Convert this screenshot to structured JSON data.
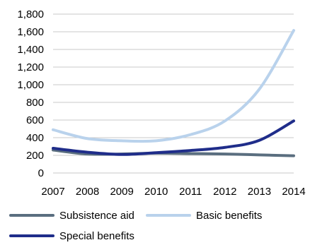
{
  "chart_data": {
    "type": "line",
    "title": "",
    "xlabel": "",
    "ylabel": "",
    "x": [
      "2007",
      "2008",
      "2009",
      "2010",
      "2011",
      "2012",
      "2013",
      "2014"
    ],
    "ylim": [
      0,
      1800
    ],
    "yticks": [
      "0",
      "200",
      "400",
      "600",
      "800",
      "1,000",
      "1,200",
      "1,400",
      "1,600",
      "1,800"
    ],
    "ytick_values": [
      0,
      200,
      400,
      600,
      800,
      1000,
      1200,
      1400,
      1600,
      1800
    ],
    "grid": true,
    "legend_position": "bottom",
    "series": [
      {
        "name": "Subsistence aid",
        "color": "#5a6e7f",
        "values": [
          260,
          215,
          215,
          225,
          220,
          215,
          205,
          195
        ]
      },
      {
        "name": "Basic benefits",
        "color": "#b9d2ec",
        "values": [
          490,
          390,
          365,
          365,
          435,
          590,
          950,
          1615
        ]
      },
      {
        "name": "Special benefits",
        "color": "#1f2d8a",
        "values": [
          280,
          235,
          210,
          230,
          255,
          290,
          370,
          590
        ]
      }
    ]
  }
}
